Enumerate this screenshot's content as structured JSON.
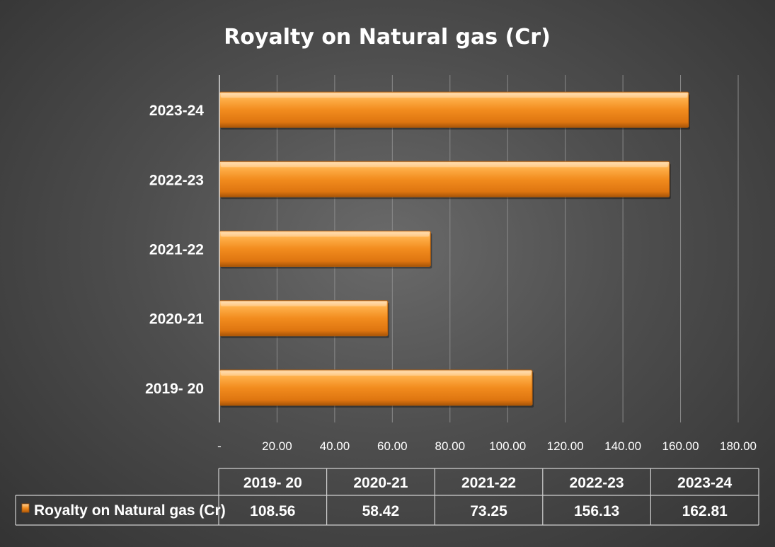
{
  "chart_data": {
    "type": "bar",
    "orientation": "horizontal",
    "title": "Royalty on Natural gas (Cr)",
    "categories": [
      "2019- 20",
      "2020-21",
      "2021-22",
      "2022-23",
      "2023-24"
    ],
    "series": [
      {
        "name": "Royalty on Natural gas (Cr)",
        "values": [
          108.56,
          58.42,
          73.25,
          156.13,
          162.81
        ],
        "value_labels": [
          "108.56",
          "58.42",
          "73.25",
          "156.13",
          "162.81"
        ],
        "color": "#f28c1e"
      }
    ],
    "xlim": [
      0,
      180
    ],
    "x_ticks": [
      0,
      20,
      40,
      60,
      80,
      100,
      120,
      140,
      160,
      180
    ],
    "x_tick_labels": [
      "-",
      "20.00",
      "40.00",
      "60.00",
      "80.00",
      "100.00",
      "120.00",
      "140.00",
      "160.00",
      "180.00"
    ],
    "grid": true,
    "legend": "data-table"
  }
}
